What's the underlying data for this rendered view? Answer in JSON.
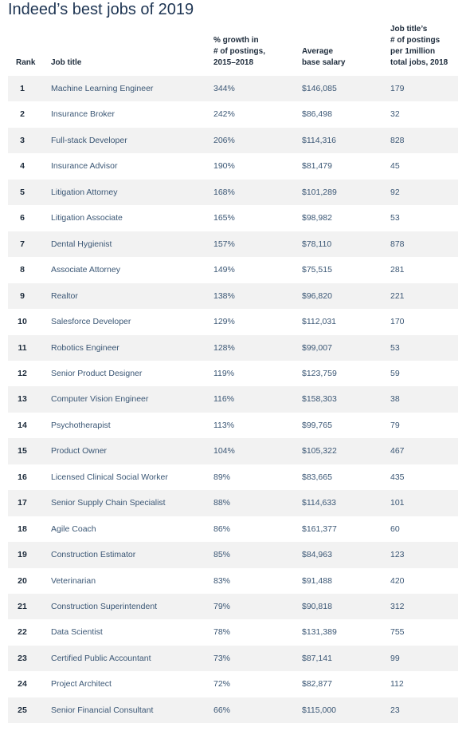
{
  "title": "Indeed’s best jobs of 2019",
  "table": {
    "headers": [
      [
        "Rank"
      ],
      [
        "Job title"
      ],
      [
        "% growth in",
        "# of postings,",
        "2015–2018"
      ],
      [
        "Average",
        "base salary"
      ],
      [
        "Job title’s",
        "# of postings",
        "per 1million",
        "total jobs, 2018"
      ]
    ],
    "rows": [
      [
        "1",
        "Machine Learning Engineer",
        "344%",
        "$146,085",
        "179"
      ],
      [
        "2",
        "Insurance Broker",
        "242%",
        "$86,498",
        "32"
      ],
      [
        "3",
        "Full-stack Developer",
        "206%",
        "$114,316",
        "828"
      ],
      [
        "4",
        "Insurance Advisor",
        "190%",
        "$81,479",
        "45"
      ],
      [
        "5",
        "Litigation Attorney",
        "168%",
        "$101,289",
        "92"
      ],
      [
        "6",
        "Litigation Associate",
        "165%",
        "$98,982",
        "53"
      ],
      [
        "7",
        "Dental Hygienist",
        "157%",
        "$78,110",
        "878"
      ],
      [
        "8",
        "Associate Attorney",
        "149%",
        "$75,515",
        "281"
      ],
      [
        "9",
        "Realtor",
        "138%",
        "$96,820",
        "221"
      ],
      [
        "10",
        "Salesforce Developer",
        "129%",
        "$112,031",
        "170"
      ],
      [
        "11",
        "Robotics Engineer",
        "128%",
        "$99,007",
        "53"
      ],
      [
        "12",
        "Senior Product Designer",
        "119%",
        "$123,759",
        "59"
      ],
      [
        "13",
        "Computer Vision Engineer",
        "116%",
        "$158,303",
        "38"
      ],
      [
        "14",
        "Psychotherapist",
        "113%",
        "$99,765",
        "79"
      ],
      [
        "15",
        "Product Owner",
        "104%",
        "$105,322",
        "467"
      ],
      [
        "16",
        "Licensed Clinical Social Worker",
        "89%",
        "$83,665",
        "435"
      ],
      [
        "17",
        "Senior Supply Chain Specialist",
        "88%",
        "$114,633",
        "101"
      ],
      [
        "18",
        "Agile Coach",
        "86%",
        "$161,377",
        "60"
      ],
      [
        "19",
        "Construction Estimator",
        "85%",
        "$84,963",
        "123"
      ],
      [
        "20",
        "Veterinarian",
        "83%",
        "$91,488",
        "420"
      ],
      [
        "21",
        "Construction Superintendent",
        "79%",
        "$90,818",
        "312"
      ],
      [
        "22",
        "Data Scientist",
        "78%",
        "$131,389",
        "755"
      ],
      [
        "23",
        "Certified Public Accountant",
        "73%",
        "$87,141",
        "99"
      ],
      [
        "24",
        "Project Architect",
        "72%",
        "$82,877",
        "112"
      ],
      [
        "25",
        "Senior Financial Consultant",
        "66%",
        "$115,000",
        "23"
      ]
    ]
  }
}
